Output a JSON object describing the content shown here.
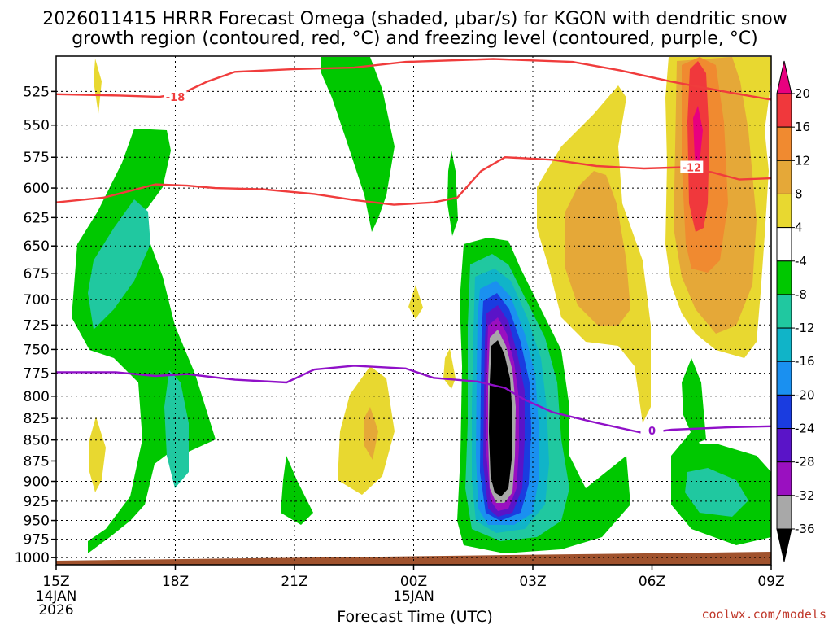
{
  "chart_data": {
    "type": "contour",
    "title_line1": "2026011415 HRRR Forecast Omega (shaded, μbar/s) for KGON with dendritic snow",
    "title_line2": "growth region (contoured, red, °C) and freezing level (contoured, purple, °C)",
    "xlabel": "Forecast Time (UTC)",
    "x_ticks": [
      {
        "hour": 15,
        "label": "15Z",
        "sub1": "14JAN",
        "sub2": "2026"
      },
      {
        "hour": 18,
        "label": "18Z",
        "sub1": "",
        "sub2": ""
      },
      {
        "hour": 21,
        "label": "21Z",
        "sub1": "",
        "sub2": ""
      },
      {
        "hour": 24,
        "label": "00Z",
        "sub1": "15JAN",
        "sub2": ""
      },
      {
        "hour": 27,
        "label": "03Z",
        "sub1": "",
        "sub2": ""
      },
      {
        "hour": 30,
        "label": "06Z",
        "sub1": "",
        "sub2": ""
      },
      {
        "hour": 33,
        "label": "09Z",
        "sub1": "",
        "sub2": ""
      }
    ],
    "x_range": [
      15,
      33
    ],
    "y_ticks": [
      525,
      550,
      575,
      600,
      625,
      650,
      675,
      700,
      725,
      750,
      775,
      800,
      825,
      850,
      875,
      900,
      925,
      950,
      975,
      1000
    ],
    "y_range_hpa": [
      500,
      1010
    ],
    "colorbar": {
      "labels": [
        "20",
        "16",
        "12",
        "8",
        "4",
        "-4",
        "-8",
        "-12",
        "-16",
        "-20",
        "-24",
        "-28",
        "-32",
        "-36"
      ],
      "colors": [
        "#e8007f",
        "#f0383c",
        "#f08a30",
        "#e5a838",
        "#e8d830",
        "#ffffff",
        "#00c800",
        "#20c8a0",
        "#10b4c8",
        "#1a90f0",
        "#1a3ce0",
        "#5a14c8",
        "#9a10c0",
        "#a8a8a8",
        "#000000"
      ]
    },
    "contours": [
      {
        "name": "dendritic-top",
        "color": "#f03c3c",
        "label": "-18",
        "points": [
          [
            15,
            527
          ],
          [
            16.6,
            528
          ],
          [
            17.6,
            529
          ],
          [
            18.2,
            526
          ],
          [
            18.8,
            518
          ],
          [
            19.5,
            511
          ],
          [
            21,
            509
          ],
          [
            22.5,
            508
          ],
          [
            23.8,
            504
          ],
          [
            26,
            502
          ],
          [
            28,
            504
          ],
          [
            29.2,
            510
          ],
          [
            30.5,
            518
          ],
          [
            32,
            526
          ],
          [
            33,
            531
          ]
        ],
        "label_at": [
          18,
          529
        ]
      },
      {
        "name": "dendritic-bottom",
        "color": "#f03c3c",
        "label": "-12",
        "points": [
          [
            15,
            612
          ],
          [
            16.2,
            608
          ],
          [
            17.5,
            597
          ],
          [
            18.3,
            598
          ],
          [
            19,
            600
          ],
          [
            20.2,
            601
          ],
          [
            21.5,
            605
          ],
          [
            22.5,
            610
          ],
          [
            23.5,
            614
          ],
          [
            24.5,
            612
          ],
          [
            25.1,
            608
          ],
          [
            25.7,
            586
          ],
          [
            26.3,
            575
          ],
          [
            27.5,
            577
          ],
          [
            28.6,
            582
          ],
          [
            29.8,
            584
          ],
          [
            30.8,
            583
          ],
          [
            31.5,
            587
          ],
          [
            32.2,
            593
          ],
          [
            33,
            592
          ]
        ],
        "label_at": [
          31,
          583
        ]
      },
      {
        "name": "freezing-level",
        "color": "#9010c8",
        "label": "0",
        "points": [
          [
            15,
            774
          ],
          [
            16.5,
            774
          ],
          [
            17.5,
            778
          ],
          [
            18.3,
            776
          ],
          [
            19.5,
            782
          ],
          [
            20.8,
            785
          ],
          [
            21.5,
            771
          ],
          [
            22.5,
            767
          ],
          [
            23.8,
            770
          ],
          [
            24.5,
            780
          ],
          [
            25.6,
            784
          ],
          [
            26.3,
            791
          ],
          [
            26.8,
            804
          ],
          [
            27.5,
            818
          ],
          [
            28.6,
            830
          ],
          [
            29.8,
            842
          ],
          [
            30.5,
            838
          ],
          [
            32,
            835
          ],
          [
            33,
            834
          ]
        ],
        "label_at": [
          30,
          839
        ]
      }
    ],
    "terrain_color": "#a0522d"
  },
  "credit": "coolwx.com/models"
}
